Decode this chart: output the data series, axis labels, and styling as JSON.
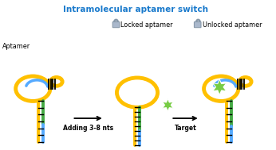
{
  "title": "Intramolecular aptamer switch",
  "title_color": "#1a7acc",
  "title_fontsize": 7.5,
  "label_aptamer": "Aptamer",
  "label_locked": "Locked aptamer",
  "label_unlocked": "Unlocked aptamer",
  "label_adding": "Adding 3-8 nts",
  "label_target": "Target",
  "color_yellow": "#FFC000",
  "color_blue": "#55AAFF",
  "color_green": "#44AA44",
  "color_star": "#77CC44",
  "color_lock": "#8899AA",
  "color_lock_body": "#AAB8CC",
  "color_black": "#000000",
  "color_white": "#FFFFFF",
  "bg_color": "#FFFFFF",
  "label_fontsize": 5.8,
  "arrow_label_fontsize": 5.5
}
